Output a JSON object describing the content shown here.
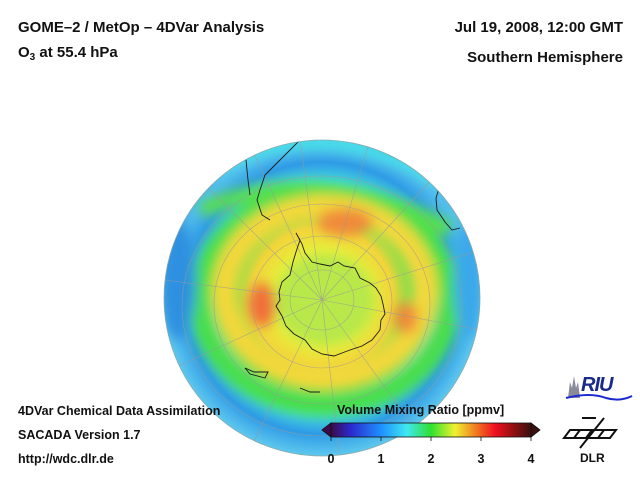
{
  "header": {
    "title_line1": "GOME–2 / MetOp – 4DVar Analysis",
    "title_species": "O",
    "title_species_sub": "3",
    "title_level": " at 55.4 hPa",
    "date": "Jul 19, 2008, 12:00 GMT",
    "region": "Southern Hemisphere"
  },
  "footer": {
    "line1": "4DVar Chemical Data Assimilation",
    "line2": "SACADA Version 1.7",
    "line3": "http://wdc.dlr.de"
  },
  "colorbar": {
    "title": "Volume Mixing Ratio [ppmv]",
    "ticks": [
      "0",
      "1",
      "2",
      "3",
      "4"
    ],
    "colors": [
      "#3a0a4a",
      "#2a2ad0",
      "#1e90ff",
      "#40e8f0",
      "#30e030",
      "#f0f030",
      "#f08020",
      "#f01020",
      "#7a1010",
      "#3a1010"
    ]
  },
  "logos": {
    "riu": "RIU",
    "dlr": "DLR"
  },
  "map": {
    "projection": "orthographic, south polar view",
    "field": "O3 volume mixing ratio",
    "level_hpa": 55.4,
    "colors": {
      "outer": "#2f9be6",
      "band": "#45dfe8",
      "mid": "#3ee05a",
      "inner": "#d7f03a",
      "high": "#f3c33a",
      "peak": "#f08a3a",
      "vortex": "#b8e84a"
    }
  }
}
